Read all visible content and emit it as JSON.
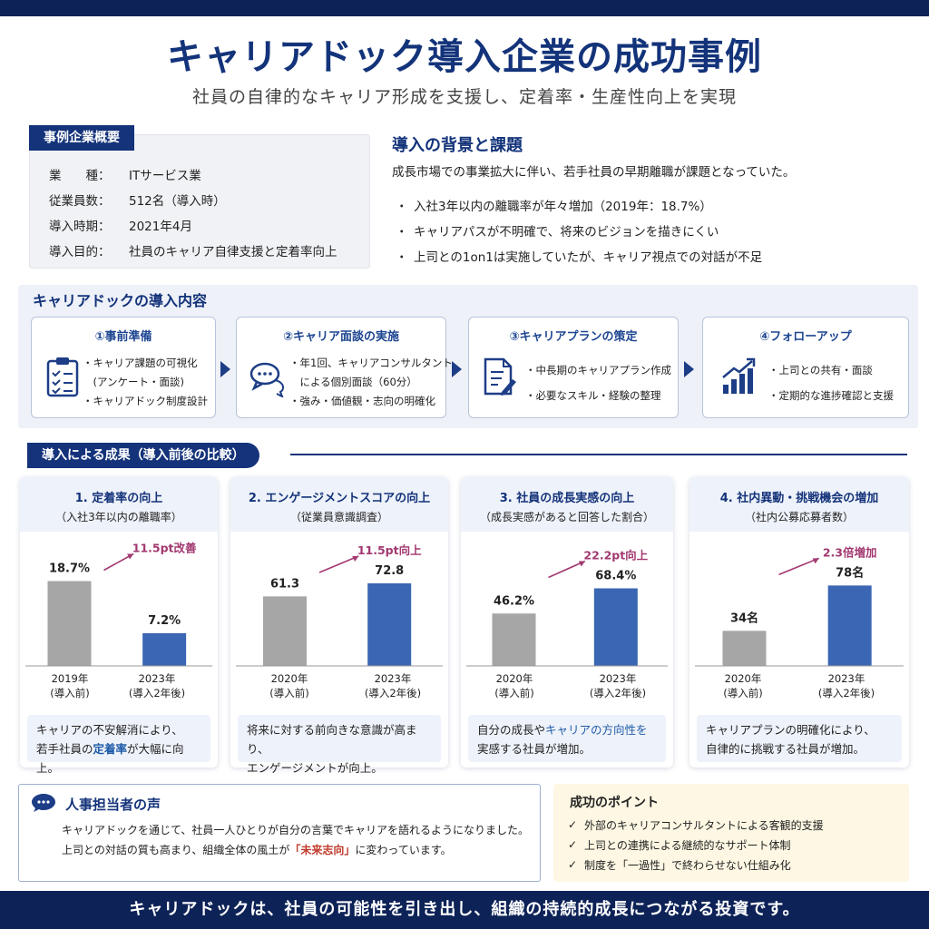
{
  "header": {
    "title": "キャリアドック導入企業の成功事例",
    "subtitle": "社員の自律的なキャリア形成を支援し、定着率・生産性向上を実現"
  },
  "company": {
    "tag": "事例企業概要",
    "rows": [
      {
        "key": "業　　種：",
        "value": "ITサービス業"
      },
      {
        "key": "従業員数：",
        "value": "512名（導入時）"
      },
      {
        "key": "導入時期：",
        "value": "2021年4月"
      },
      {
        "key": "導入目的：",
        "value": "社員のキャリア自律支援と定着率向上"
      }
    ]
  },
  "background": {
    "title": "導入の背景と課題",
    "text": "成長市場での事業拡大に伴い、若手社員の早期離職が課題となっていた。",
    "bullet": "・",
    "items": [
      "入社3年以内の離職率が年々増加（2019年：18.7%）",
      "キャリアパスが不明確で、将来のビジョンを描きにくい",
      "上司との1on1は実施していたが、キャリア視点での対話が不足"
    ]
  },
  "intro": {
    "title": "キャリアドックの導入内容",
    "steps": [
      {
        "title": "①事前準備",
        "icon": "clipboard-checklist-icon",
        "items": [
          "・キャリア課題の可視化",
          "　(アンケート・面談)",
          "・キャリアドック制度設計"
        ]
      },
      {
        "title": "②キャリア面談の実施",
        "icon": "chat-bubbles-icon",
        "items": [
          "・年1回、キャリアコンサルタント",
          "　による個別面談（60分）",
          "・強み・価値観・志向の明確化"
        ]
      },
      {
        "title": "③キャリアプランの策定",
        "icon": "document-pen-icon",
        "items": [
          "・中長期のキャリアプラン作成",
          "・必要なスキル・経験の整理"
        ]
      },
      {
        "title": "④フォローアップ",
        "icon": "growth-chart-icon",
        "items": [
          "・上司との共有・面談",
          "・定期的な進捗確認と支援"
        ]
      }
    ]
  },
  "results": {
    "tag": "導入による成果（導入前後の比較）",
    "cards": [
      {
        "title": "1. 定着率の向上",
        "subtitle": "（入社3年以内の離職率）",
        "before_label": "18.7%",
        "after_label": "7.2%",
        "change": "11.5pt改善",
        "x_before": [
          "2019年",
          "(導入前)"
        ],
        "x_after": [
          "2023年",
          "(導入2年後)"
        ],
        "note": [
          "キャリアの不安解消により、",
          "若手社員の",
          "定着率",
          "が大幅に向上。"
        ]
      },
      {
        "title": "2. エンゲージメントスコアの向上",
        "subtitle": "（従業員意識調査）",
        "before_label": "61.3",
        "after_label": "72.8",
        "change": "11.5pt向上",
        "x_before": [
          "2020年",
          "(導入前)"
        ],
        "x_after": [
          "2023年",
          "(導入2年後)"
        ],
        "note": [
          "将来に対する前向きな意識が高まり、",
          "エンゲージメントが向上。"
        ]
      },
      {
        "title": "3. 社員の成長実感の向上",
        "subtitle": "（成長実感があると回答した割合）",
        "before_label": "46.2%",
        "after_label": "68.4%",
        "change": "22.2pt向上",
        "x_before": [
          "2020年",
          "(導入前)"
        ],
        "x_after": [
          "2023年",
          "(導入2年後)"
        ],
        "note": [
          "自分の成長や",
          "キャリアの方向性を",
          "実感する社員が増加。"
        ]
      },
      {
        "title": "4. 社内異動・挑戦機会の増加",
        "subtitle": "（社内公募応募者数）",
        "before_label": "34名",
        "after_label": "78名",
        "change": "2.3倍増加",
        "x_before": [
          "2020年",
          "(導入前)"
        ],
        "x_after": [
          "2023年",
          "(導入2年後)"
        ],
        "note": [
          "キャリアプランの明確化により、",
          "自律的に挑戦する社員が増加。"
        ]
      }
    ]
  },
  "chart_data": [
    {
      "type": "bar",
      "title": "1. 定着率の向上",
      "subtitle": "（入社3年以内の離職率）",
      "categories": [
        "2019年(導入前)",
        "2023年(導入2年後)"
      ],
      "values": [
        18.7,
        7.2
      ],
      "unit": "%",
      "annotation": "11.5pt改善",
      "ylim": [
        0,
        25
      ]
    },
    {
      "type": "bar",
      "title": "2. エンゲージメントスコアの向上",
      "subtitle": "（従業員意識調査）",
      "categories": [
        "2020年(導入前)",
        "2023年(導入2年後)"
      ],
      "values": [
        61.3,
        72.8
      ],
      "unit": "",
      "annotation": "11.5pt向上",
      "ylim": [
        0,
        100
      ]
    },
    {
      "type": "bar",
      "title": "3. 社員の成長実感の向上",
      "subtitle": "（成長実感があると回答した割合）",
      "categories": [
        "2020年(導入前)",
        "2023年(導入2年後)"
      ],
      "values": [
        46.2,
        68.4
      ],
      "unit": "%",
      "annotation": "22.2pt向上",
      "ylim": [
        0,
        100
      ]
    },
    {
      "type": "bar",
      "title": "4. 社内異動・挑戦機会の増加",
      "subtitle": "（社内公募応募者数）",
      "categories": [
        "2020年(導入前)",
        "2023年(導入2年後)"
      ],
      "values": [
        34,
        78
      ],
      "unit": "名",
      "annotation": "2.3倍増加",
      "ylim": [
        0,
        110
      ]
    }
  ],
  "colors": {
    "navy": "#0d2257",
    "before_bar": "#a6a6a6",
    "after_bar": "#3a66b3",
    "arrow": "#a23870",
    "change_text": "#a23870"
  },
  "voice": {
    "title": "人事担当者の声",
    "icon": "speech-bubble-icon",
    "line1": "キャリアドックを通じて、社員一人ひとりが自分の言葉でキャリアを語れるようになりました。",
    "line2_pre": "上司との対話の質も高まり、組織全体の風土が",
    "line2_hl": "「未来志向」",
    "line2_post": "に変わっています。"
  },
  "points": {
    "title": "成功のポイント",
    "check": "✓",
    "items": [
      "外部のキャリアコンサルタントによる客観的支援",
      "上司との連携による継続的なサポート体制",
      "制度を「一過性」で終わらせない仕組み化"
    ]
  },
  "footer": {
    "text": "キャリアドックは、社員の可能性を引き出し、組織の持続的成長につながる投資です。"
  }
}
